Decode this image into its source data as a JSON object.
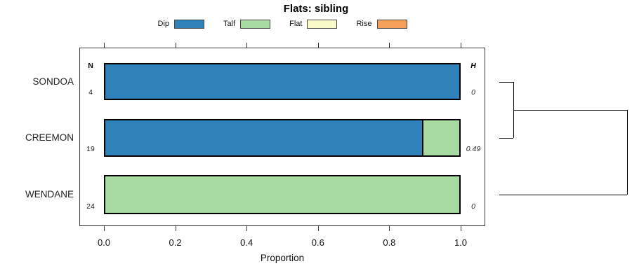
{
  "title": "Flats: sibling",
  "chart_data": {
    "type": "bar",
    "orientation": "horizontal",
    "stacked": true,
    "title": "Flats: sibling",
    "xlabel": "Proportion",
    "xlim": [
      0.0,
      1.0
    ],
    "grid": false,
    "legend_position": "top",
    "categories": [
      "SONDOA",
      "CREEMON",
      "WENDANE"
    ],
    "series": [
      {
        "name": "Dip",
        "color": "#2E82B9",
        "values": [
          1.0,
          0.895,
          0.0
        ]
      },
      {
        "name": "Talf",
        "color": "#A8DBA2",
        "values": [
          0.0,
          0.105,
          1.0
        ]
      },
      {
        "name": "Flat",
        "color": "#FAFAC9",
        "values": [
          0.0,
          0.0,
          0.0
        ]
      },
      {
        "name": "Rise",
        "color": "#F4A05A",
        "values": [
          0.0,
          0.0,
          0.0
        ]
      }
    ],
    "n_column": {
      "header": "N",
      "values": [
        "4",
        "19",
        "24"
      ]
    },
    "h_column": {
      "header": "H",
      "values": [
        "0",
        "0.49",
        "0"
      ]
    },
    "x_ticks": [
      {
        "value": 0.0,
        "label": "0.0"
      },
      {
        "value": 0.2,
        "label": "0.2"
      },
      {
        "value": 0.4,
        "label": "0.4"
      },
      {
        "value": 0.6,
        "label": "0.6"
      },
      {
        "value": 0.8,
        "label": "0.8"
      },
      {
        "value": 1.0,
        "label": "1.0"
      }
    ],
    "dendrogram": {
      "merges": [
        {
          "members": [
            "SONDOA",
            "CREEMON"
          ],
          "order": 1
        },
        {
          "members": [
            "SONDOA+CREEMON",
            "WENDANE"
          ],
          "order": 2
        }
      ]
    }
  }
}
